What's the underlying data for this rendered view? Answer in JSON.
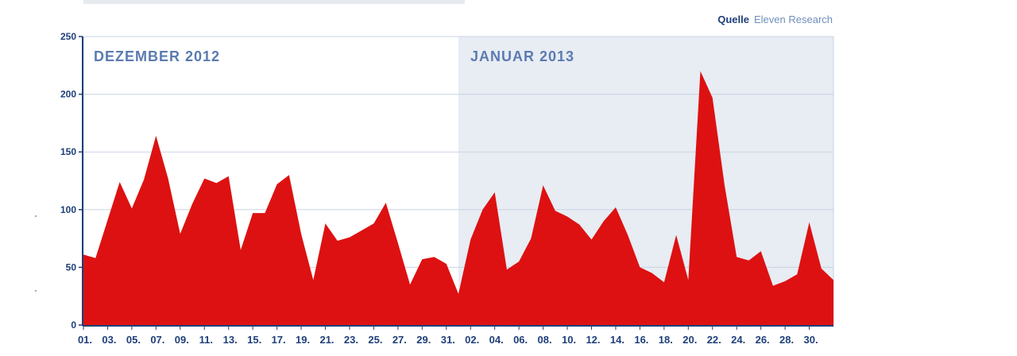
{
  "source": {
    "label": "Quelle",
    "name": "Eleven Research"
  },
  "chart_data": {
    "type": "area",
    "periods": [
      "DEZEMBER 2012",
      "JANUAR 2013"
    ],
    "ylim": [
      0,
      250
    ],
    "yticks": [
      0,
      50,
      100,
      150,
      200,
      250
    ],
    "xticklabels": [
      "01.",
      "03.",
      "05.",
      "07.",
      "09.",
      "11.",
      "13.",
      "15.",
      "17.",
      "19.",
      "21.",
      "23.",
      "25.",
      "27.",
      "29.",
      "31.",
      "02.",
      "04.",
      "06.",
      "08.",
      "10.",
      "12.",
      "14.",
      "16.",
      "18.",
      "20.",
      "22.",
      "24.",
      "26.",
      "28.",
      "30."
    ],
    "grid": true,
    "colors": {
      "area": "#dd1111",
      "january_background": "#e8ecf3",
      "axis_text": "#1f3f7a",
      "period_text": "#5a7bb0",
      "gridline": "#c9d3e3"
    },
    "series": [
      {
        "values": [
          61,
          58,
          91,
          124,
          101,
          126,
          164,
          127,
          79,
          105,
          127,
          123,
          129,
          65,
          97,
          97,
          122,
          130,
          79,
          39,
          88,
          73,
          76,
          82,
          88,
          106,
          71,
          35,
          57,
          59,
          53,
          27,
          74,
          100,
          115,
          48,
          55,
          75,
          121,
          99,
          94,
          87,
          74,
          90,
          102,
          78,
          50,
          45,
          37,
          78,
          39,
          220,
          197,
          121,
          59,
          56,
          64,
          34,
          38,
          44,
          89,
          49,
          39
        ]
      }
    ]
  }
}
